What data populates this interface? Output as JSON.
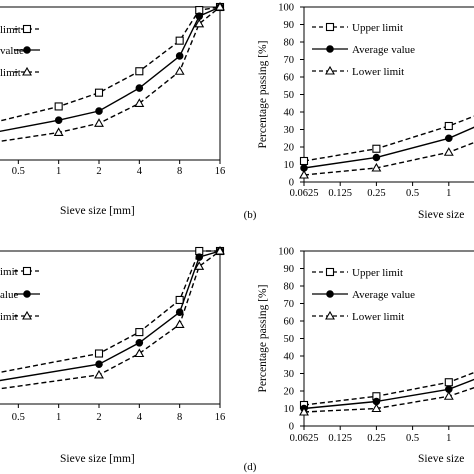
{
  "legend_labels": {
    "upper": "Upper limit",
    "average": "Average value",
    "lower": "Lower limit"
  },
  "chart_data": [
    {
      "id": "a",
      "type": "line",
      "panel_label": "",
      "xlabel": "Sieve size [mm]",
      "ylabel": "",
      "x_scale": "log2",
      "xlim": [
        0.25,
        16
      ],
      "ylim": [
        0,
        100
      ],
      "x_ticks": [
        0.5,
        1,
        2,
        4,
        8,
        16
      ],
      "x_tick_labels": [
        "0.5",
        "1",
        "2",
        "4",
        "8",
        "16"
      ],
      "legend": [
        {
          "label": "limit",
          "marker": "square",
          "dash": "dashed"
        },
        {
          "label": "value",
          "marker": "circle",
          "dash": "solid"
        },
        {
          "label": "limit",
          "marker": "triangle",
          "dash": "dashed"
        }
      ],
      "series": [
        {
          "name": "Upper limit",
          "marker": "square",
          "dash": "dashed",
          "x": [
            0.25,
            1,
            2,
            4,
            8,
            11.2,
            16
          ],
          "y": [
            22,
            35,
            44,
            58,
            78,
            98,
            100
          ]
        },
        {
          "name": "Average value",
          "marker": "circle",
          "dash": "solid",
          "x": [
            0.25,
            1,
            2,
            4,
            8,
            11.2,
            16
          ],
          "y": [
            16,
            26,
            32,
            47,
            68,
            94,
            100
          ]
        },
        {
          "name": "Lower limit",
          "marker": "triangle",
          "dash": "dashed",
          "x": [
            0.25,
            1,
            2,
            4,
            8,
            11.2,
            16
          ],
          "y": [
            10,
            18,
            24,
            37,
            58,
            89,
            100
          ]
        }
      ]
    },
    {
      "id": "b",
      "type": "line",
      "panel_label": "(b)",
      "xlabel": "Sieve size",
      "ylabel": "Percentage passing [%]",
      "x_scale": "log2",
      "xlim": [
        0.0625,
        2
      ],
      "ylim": [
        0,
        100
      ],
      "y_ticks": [
        0,
        10,
        20,
        30,
        40,
        50,
        60,
        70,
        80,
        90,
        100
      ],
      "x_ticks": [
        0.0625,
        0.125,
        0.25,
        0.5,
        1
      ],
      "x_tick_labels": [
        "0.0625",
        "0.125",
        "0.25",
        "0.5",
        "1"
      ],
      "legend": [
        {
          "label": "Upper limit",
          "marker": "square",
          "dash": "dashed"
        },
        {
          "label": "Average value",
          "marker": "circle",
          "dash": "solid"
        },
        {
          "label": "Lower limit",
          "marker": "triangle",
          "dash": "dashed"
        }
      ],
      "series": [
        {
          "name": "Upper limit",
          "marker": "square",
          "dash": "dashed",
          "x": [
            0.0625,
            0.25,
            1,
            2
          ],
          "y": [
            12,
            19,
            32,
            40
          ]
        },
        {
          "name": "Average value",
          "marker": "circle",
          "dash": "solid",
          "x": [
            0.0625,
            0.25,
            1,
            2
          ],
          "y": [
            8,
            14,
            25,
            34
          ]
        },
        {
          "name": "Lower limit",
          "marker": "triangle",
          "dash": "dashed",
          "x": [
            0.0625,
            0.25,
            1,
            2
          ],
          "y": [
            4,
            8,
            17,
            25
          ]
        }
      ]
    },
    {
      "id": "c",
      "type": "line",
      "panel_label": "",
      "xlabel": "Sieve size [mm]",
      "ylabel": "",
      "x_scale": "log2",
      "xlim": [
        0.25,
        16
      ],
      "ylim": [
        0,
        100
      ],
      "x_ticks": [
        0.5,
        1,
        2,
        4,
        8,
        16
      ],
      "x_tick_labels": [
        "0.5",
        "1",
        "2",
        "4",
        "8",
        "16"
      ],
      "legend": [
        {
          "label": "imit",
          "marker": "square",
          "dash": "dashed"
        },
        {
          "label": "alue",
          "marker": "circle",
          "dash": "solid"
        },
        {
          "label": "imit",
          "marker": "triangle",
          "dash": "dashed"
        }
      ],
      "series": [
        {
          "name": "Upper limit",
          "marker": "square",
          "dash": "dashed",
          "x": [
            0.25,
            2,
            4,
            8,
            11.2,
            16
          ],
          "y": [
            18,
            33,
            47,
            68,
            100,
            100
          ]
        },
        {
          "name": "Average value",
          "marker": "circle",
          "dash": "solid",
          "x": [
            0.25,
            2,
            4,
            8,
            11.2,
            16
          ],
          "y": [
            13,
            26,
            40,
            60,
            96,
            100
          ]
        },
        {
          "name": "Lower limit",
          "marker": "triangle",
          "dash": "dashed",
          "x": [
            0.25,
            2,
            4,
            8,
            11.2,
            16
          ],
          "y": [
            8,
            19,
            33,
            52,
            90,
            100
          ]
        }
      ]
    },
    {
      "id": "d",
      "type": "line",
      "panel_label": "(d)",
      "xlabel": "Sieve size",
      "ylabel": "Percentage passing [%]",
      "x_scale": "log2",
      "xlim": [
        0.0625,
        2
      ],
      "ylim": [
        0,
        100
      ],
      "y_ticks": [
        0,
        10,
        20,
        30,
        40,
        50,
        60,
        70,
        80,
        90,
        100
      ],
      "x_ticks": [
        0.0625,
        0.125,
        0.25,
        0.5,
        1
      ],
      "x_tick_labels": [
        "0.0625",
        "0.125",
        "0.25",
        "0.5",
        "1"
      ],
      "legend": [
        {
          "label": "Upper limit",
          "marker": "square",
          "dash": "dashed"
        },
        {
          "label": "Average value",
          "marker": "circle",
          "dash": "solid"
        },
        {
          "label": "Lower limit",
          "marker": "triangle",
          "dash": "dashed"
        }
      ],
      "series": [
        {
          "name": "Upper limit",
          "marker": "square",
          "dash": "dashed",
          "x": [
            0.0625,
            0.25,
            1,
            2
          ],
          "y": [
            12,
            17,
            25,
            33
          ]
        },
        {
          "name": "Average value",
          "marker": "circle",
          "dash": "solid",
          "x": [
            0.0625,
            0.25,
            1,
            2
          ],
          "y": [
            10,
            14,
            21,
            29
          ]
        },
        {
          "name": "Lower limit",
          "marker": "triangle",
          "dash": "dashed",
          "x": [
            0.0625,
            0.25,
            1,
            2
          ],
          "y": [
            8,
            10,
            17,
            24
          ]
        }
      ]
    }
  ]
}
